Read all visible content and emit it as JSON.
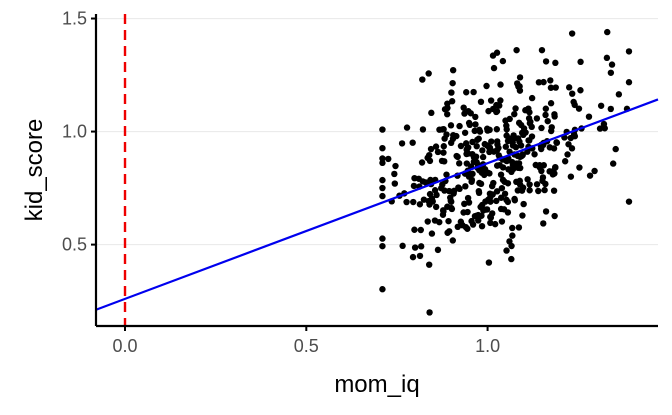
{
  "chart_data": {
    "type": "scatter",
    "title": "",
    "xlabel": "mom_iq",
    "ylabel": "kid_score",
    "xlim": [
      -0.08,
      1.47
    ],
    "ylim": [
      0.14,
      1.52
    ],
    "x_ticks": [
      0.0,
      0.5,
      1.0
    ],
    "x_tick_labels": [
      "0.0",
      "0.5",
      "1.0"
    ],
    "y_ticks": [
      0.5,
      1.0,
      1.5
    ],
    "y_tick_labels": [
      "0.5",
      "1.0",
      "1.5"
    ],
    "grid": "horizontal major gridlines",
    "legend": "none",
    "colors": {
      "points": "#000000",
      "fit_line": "#0000ee",
      "ref_line": "#ee0000",
      "grid": "#ebebeb",
      "axis": "#000000"
    },
    "fit_line": {
      "intercept": 0.26,
      "slope": 0.6
    },
    "reference_line": {
      "x": 0.0,
      "style": "dashed"
    },
    "points": {
      "n": 434,
      "x_mean": 1.0,
      "x_sd": 0.15,
      "y_mean": 0.86,
      "y_sd": 0.2,
      "correlation": 0.45,
      "x_range": [
        0.71,
        1.39
      ],
      "y_range": [
        0.2,
        1.44
      ],
      "notable": [
        [
          0.84,
          0.2
        ],
        [
          1.33,
          1.44
        ],
        [
          1.39,
          0.69
        ],
        [
          1.34,
          1.26
        ],
        [
          1.08,
          1.36
        ],
        [
          1.15,
          1.36
        ],
        [
          0.82,
          1.23
        ]
      ]
    }
  }
}
